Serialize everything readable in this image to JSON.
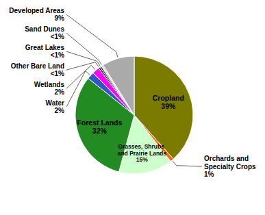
{
  "chart_data": {
    "type": "pie",
    "categories": [
      "Cropland",
      "Orchards and\nSpecialty Crops",
      "Grasses, Shrubs\nand Prairie Lands",
      "Forest Lands",
      "Water",
      "Wetlands",
      "Other Bare Land",
      "Great Lakes",
      "Sand Dunes",
      "Developed Areas"
    ],
    "values": [
      39,
      1,
      15,
      32,
      2,
      2,
      0.5,
      0.4,
      0.6,
      9
    ],
    "value_labels": [
      "39%",
      "1%",
      "15%",
      "32%",
      "2%",
      "2%",
      "<1%",
      "<1%",
      "<1%",
      "9%"
    ],
    "colors": [
      "#7B7B00",
      "#FF6600",
      "#CCFFCC",
      "#228B22",
      "#3355CC",
      "#FF00FF",
      "#2a2a2a",
      "#111111",
      "#DDDDDD",
      "#AAAAAA"
    ],
    "data_labels": true
  }
}
